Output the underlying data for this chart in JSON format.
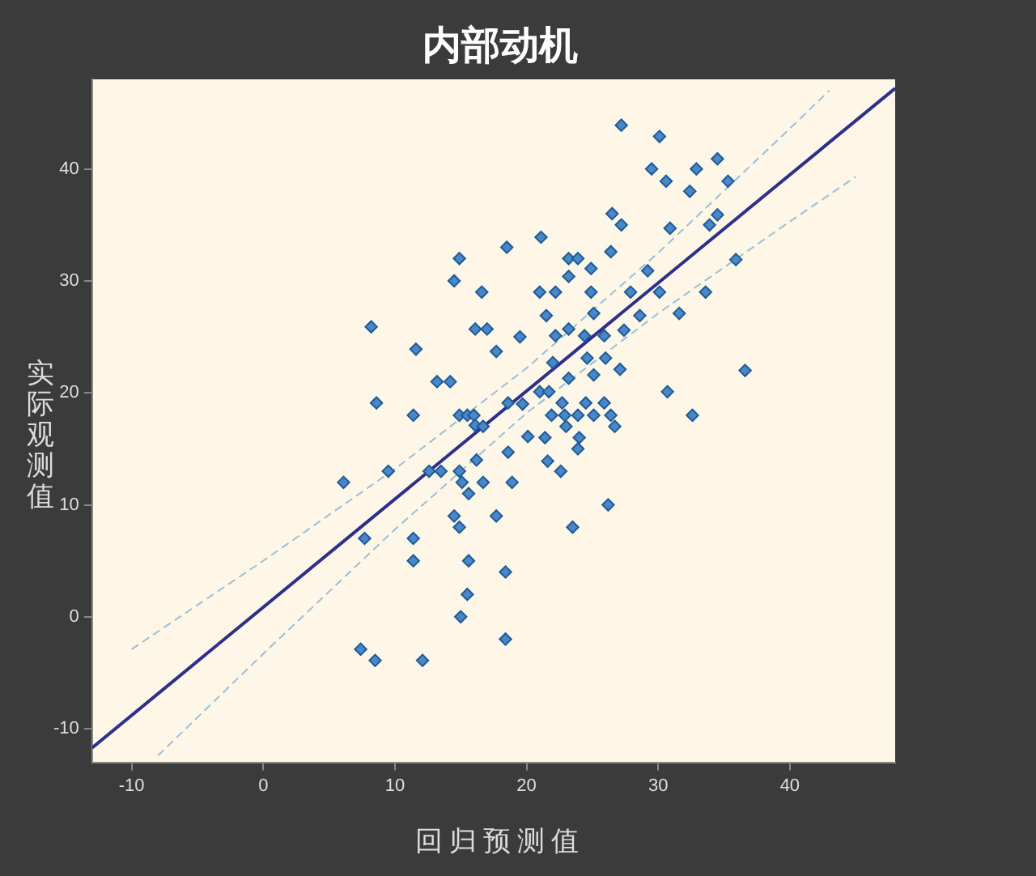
{
  "chart_data": {
    "type": "scatter",
    "title": "内部动机",
    "xlabel": "回归预测值",
    "ylabel": "实际观测值",
    "xlim": [
      -13,
      48
    ],
    "ylim": [
      -13,
      48
    ],
    "xticks": [
      -10,
      0,
      10,
      20,
      30,
      40
    ],
    "yticks": [
      -10,
      0,
      10,
      20,
      30,
      40
    ],
    "grid": false,
    "legend": false,
    "series": [
      {
        "marker": "diamond",
        "color": "#4a87c8",
        "x": [
          27.2,
          30.1,
          29.5,
          34.5,
          32.9,
          35.3,
          32.4,
          30.6,
          30.9,
          26.5,
          27.2,
          34.5,
          33.9,
          21.1,
          18.5,
          14.9,
          23.2,
          23.9,
          26.4,
          24.9,
          16.6,
          14.5,
          23.2,
          24.9,
          21,
          22.2,
          27.9,
          29.2,
          33.6,
          30.1,
          35.9,
          28.6,
          31.6,
          25.1,
          21.5,
          23.2,
          24.4,
          25.9,
          27.4,
          22.2,
          16.1,
          17,
          17.7,
          19.5,
          8.2,
          11.6,
          24.6,
          26,
          27.1,
          22,
          23.2,
          25.1,
          36.6,
          21,
          21.7,
          30.7,
          22.7,
          24.5,
          25.9,
          18.6,
          19.7,
          8.6,
          13.2,
          14.2,
          11.4,
          14.9,
          15.5,
          16,
          21.9,
          22.9,
          23.9,
          25.1,
          26.4,
          32.6,
          16.1,
          16.7,
          26.7,
          23,
          20.1,
          21.4,
          24,
          18.6,
          21.6,
          23.9,
          16.2,
          22.6,
          12.6,
          13.5,
          14.9,
          9.5,
          6.1,
          15.1,
          16.7,
          18.9,
          15.6,
          26.2,
          7.7,
          11.4,
          14.5,
          14.9,
          17.7,
          23.5,
          11.4,
          15.6,
          18.4,
          15.5,
          15,
          18.4,
          7.4,
          8.5,
          12.1
        ],
        "values": [
          43.9,
          42.9,
          40,
          40.9,
          40,
          38.9,
          38,
          38.9,
          34.7,
          36,
          35,
          35.9,
          35,
          33.9,
          33,
          32,
          32,
          32,
          32.6,
          31.1,
          29,
          30,
          30.4,
          29,
          29,
          29,
          29,
          30.9,
          29,
          29,
          31.9,
          26.9,
          27.1,
          27.1,
          26.9,
          25.7,
          25.1,
          25.1,
          25.6,
          25.1,
          25.7,
          25.7,
          23.7,
          25,
          25.9,
          23.9,
          23.1,
          23.1,
          22.1,
          22.7,
          21.3,
          21.6,
          22,
          20.1,
          20.1,
          20.1,
          19.1,
          19.1,
          19.1,
          19.1,
          19,
          19.1,
          21,
          21,
          18,
          18,
          18,
          18,
          18,
          18,
          18,
          18,
          18,
          18,
          17.1,
          17,
          17,
          17,
          16.1,
          16,
          16,
          14.7,
          13.9,
          15,
          14,
          13,
          13,
          13,
          13,
          13,
          12,
          12,
          12,
          12,
          11,
          10,
          7,
          7,
          9,
          8,
          9,
          8,
          5,
          5,
          4,
          2,
          0,
          -2,
          -2.9,
          -3.9,
          -3.9
        ]
      },
      {
        "type": "line",
        "marker": "none",
        "color": "#2e2f8a",
        "line_style": "solid",
        "x": [
          -13,
          48
        ],
        "values": [
          -11.7,
          47.2
        ]
      },
      {
        "type": "line",
        "marker": "none",
        "color": "#9dbdd8",
        "line_style": "dashed",
        "x": [
          -10,
          0,
          10,
          20,
          30,
          40,
          43
        ],
        "values": [
          -2.9,
          5,
          13.2,
          22.2,
          32.5,
          43.6,
          47
        ]
      },
      {
        "type": "line",
        "marker": "none",
        "color": "#9dbdd8",
        "line_style": "dashed",
        "x": [
          -8,
          0,
          10,
          20,
          30,
          40,
          45
        ],
        "values": [
          -12.4,
          -3.3,
          7.8,
          18.2,
          27.1,
          35.3,
          39.3
        ]
      }
    ]
  }
}
